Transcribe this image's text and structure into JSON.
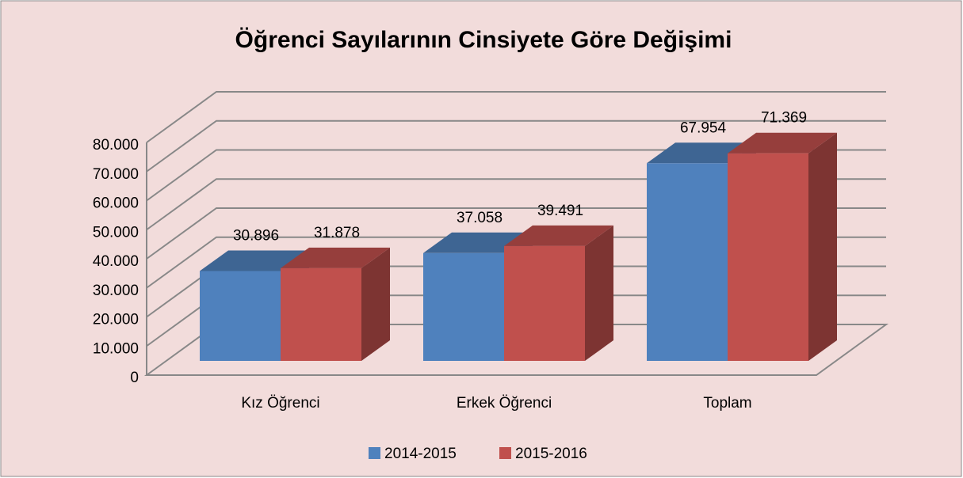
{
  "chart_data": {
    "type": "bar3d",
    "title": "Öğrenci Sayılarının Cinsiyete Göre Değişimi",
    "categories": [
      "Kız Öğrenci",
      "Erkek Öğrenci",
      "Toplam"
    ],
    "series": [
      {
        "name": "2014-2015",
        "color": "#4f81bd",
        "values": [
          30896,
          37058,
          67954
        ],
        "value_labels": [
          "30.896",
          "37.058",
          "67.954"
        ]
      },
      {
        "name": "2015-2016",
        "color": "#c0504d",
        "values": [
          31878,
          39491,
          71369
        ],
        "value_labels": [
          "31.878",
          "39.491",
          "71.369"
        ]
      }
    ],
    "ylim": [
      0,
      80000
    ],
    "yticks": [
      0,
      {
        "value": 10000,
        "label": "10.000"
      },
      {
        "value": 20000,
        "label": "20.000"
      },
      {
        "value": 30000,
        "label": "30.000"
      },
      {
        "value": 40000,
        "label": "40.000"
      },
      {
        "value": 50000,
        "label": "50.000"
      },
      {
        "value": 60000,
        "label": "60.000"
      },
      {
        "value": 70000,
        "label": "70.000"
      },
      {
        "value": 80000,
        "label": "80.000"
      }
    ],
    "grid": true,
    "legend": "bottom"
  }
}
